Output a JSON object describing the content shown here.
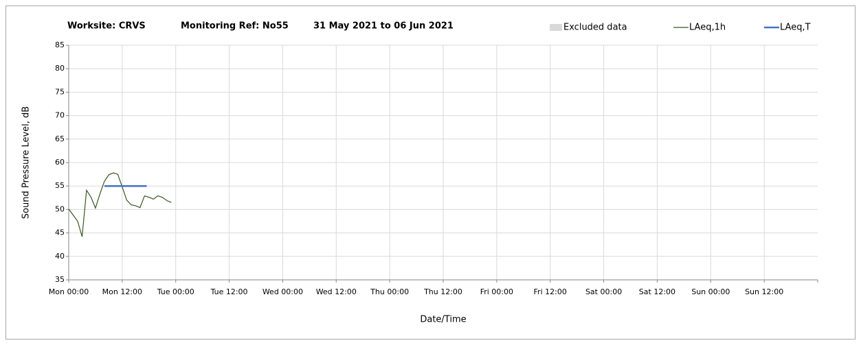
{
  "chart_data": {
    "type": "line",
    "title": [
      "Worksite: CRVS",
      "Monitoring Ref: No55",
      "31 May 2021 to 06 Jun 2021"
    ],
    "y_label": "Sound Pressure Level, dB",
    "x_label": "Date/Time",
    "xlim": [
      0,
      168
    ],
    "xticks": [
      {
        "value": 0,
        "label": "Mon 00:00"
      },
      {
        "value": 12,
        "label": "Mon 12:00"
      },
      {
        "value": 24,
        "label": "Tue 00:00"
      },
      {
        "value": 36,
        "label": "Tue 12:00"
      },
      {
        "value": 48,
        "label": "Wed 00:00"
      },
      {
        "value": 60,
        "label": "Wed 12:00"
      },
      {
        "value": 72,
        "label": "Thu 00:00"
      },
      {
        "value": 84,
        "label": "Thu 12:00"
      },
      {
        "value": 96,
        "label": "Fri 00:00"
      },
      {
        "value": 108,
        "label": "Fri 12:00"
      },
      {
        "value": 120,
        "label": "Sat 00:00"
      },
      {
        "value": 132,
        "label": "Sat 12:00"
      },
      {
        "value": 144,
        "label": "Sun 00:00"
      },
      {
        "value": 156,
        "label": "Sun 12:00"
      }
    ],
    "ylim": [
      35,
      85
    ],
    "yticks": [
      35,
      40,
      45,
      50,
      55,
      60,
      65,
      70,
      75,
      80,
      85
    ],
    "grid": true,
    "legend": "top-right",
    "series": [
      {
        "name": "Excluded data",
        "color": "#d9d9d9",
        "x": [],
        "values": []
      },
      {
        "name": "LAeq,1h",
        "color": "#375623",
        "x": [
          0,
          1,
          2,
          3,
          4,
          5,
          6,
          7,
          8,
          9,
          10,
          11,
          12,
          13,
          14,
          15,
          16,
          17,
          18,
          19,
          20,
          21,
          22,
          23
        ],
        "values": [
          50.1,
          48.8,
          47.5,
          44.2,
          54.1,
          52.6,
          50.3,
          53.3,
          56,
          57.4,
          57.8,
          57.5,
          54.8,
          52,
          51,
          50.8,
          50.4,
          52.9,
          52.6,
          52.2,
          52.9,
          52.6,
          51.9,
          51.5
        ]
      },
      {
        "name": "LAeq,T",
        "color": "#4472c4",
        "x": [
          8,
          17.5
        ],
        "values": [
          55,
          55
        ]
      }
    ]
  }
}
